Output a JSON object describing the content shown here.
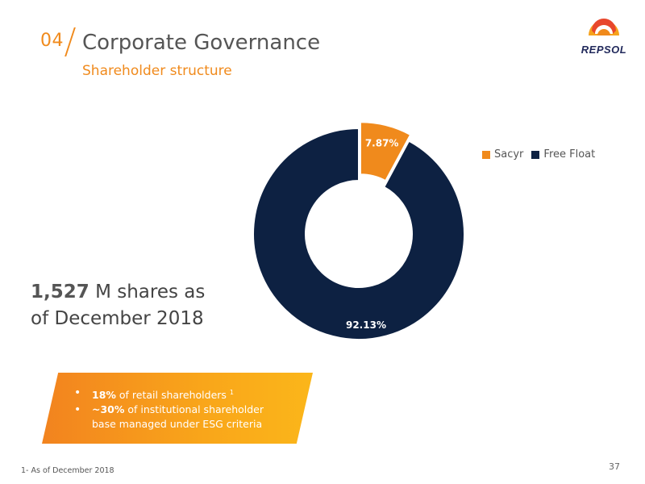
{
  "header": {
    "section_number": "04",
    "title": "Corporate Governance",
    "subtitle": "Shareholder structure",
    "logo_text": "REPSOL"
  },
  "shares": {
    "value": "1,527",
    "text": " M shares as of December 2018"
  },
  "highlights": [
    {
      "bold": "18%",
      "text": " of retail shareholders ",
      "sup": "1"
    },
    {
      "bold": "~30%",
      "text": " of institutional shareholder base managed under ESG criteria",
      "sup": ""
    }
  ],
  "footnote": "1- As of December 2018",
  "page_number": "37",
  "colors": {
    "accent_orange": "#f08a1c",
    "navy": "#0d2142",
    "banner_start": "#f2831f",
    "banner_end": "#fbb61a"
  },
  "chart_data": {
    "type": "pie",
    "style": "donut",
    "title": "",
    "legend_position": "top-right",
    "slices": [
      {
        "name": "Sacyr",
        "value": 7.87,
        "label": "7.87%",
        "color": "#f08a1c",
        "exploded": true
      },
      {
        "name": "Free Float",
        "value": 92.13,
        "label": "92.13%",
        "color": "#0d2142",
        "exploded": false
      }
    ]
  }
}
